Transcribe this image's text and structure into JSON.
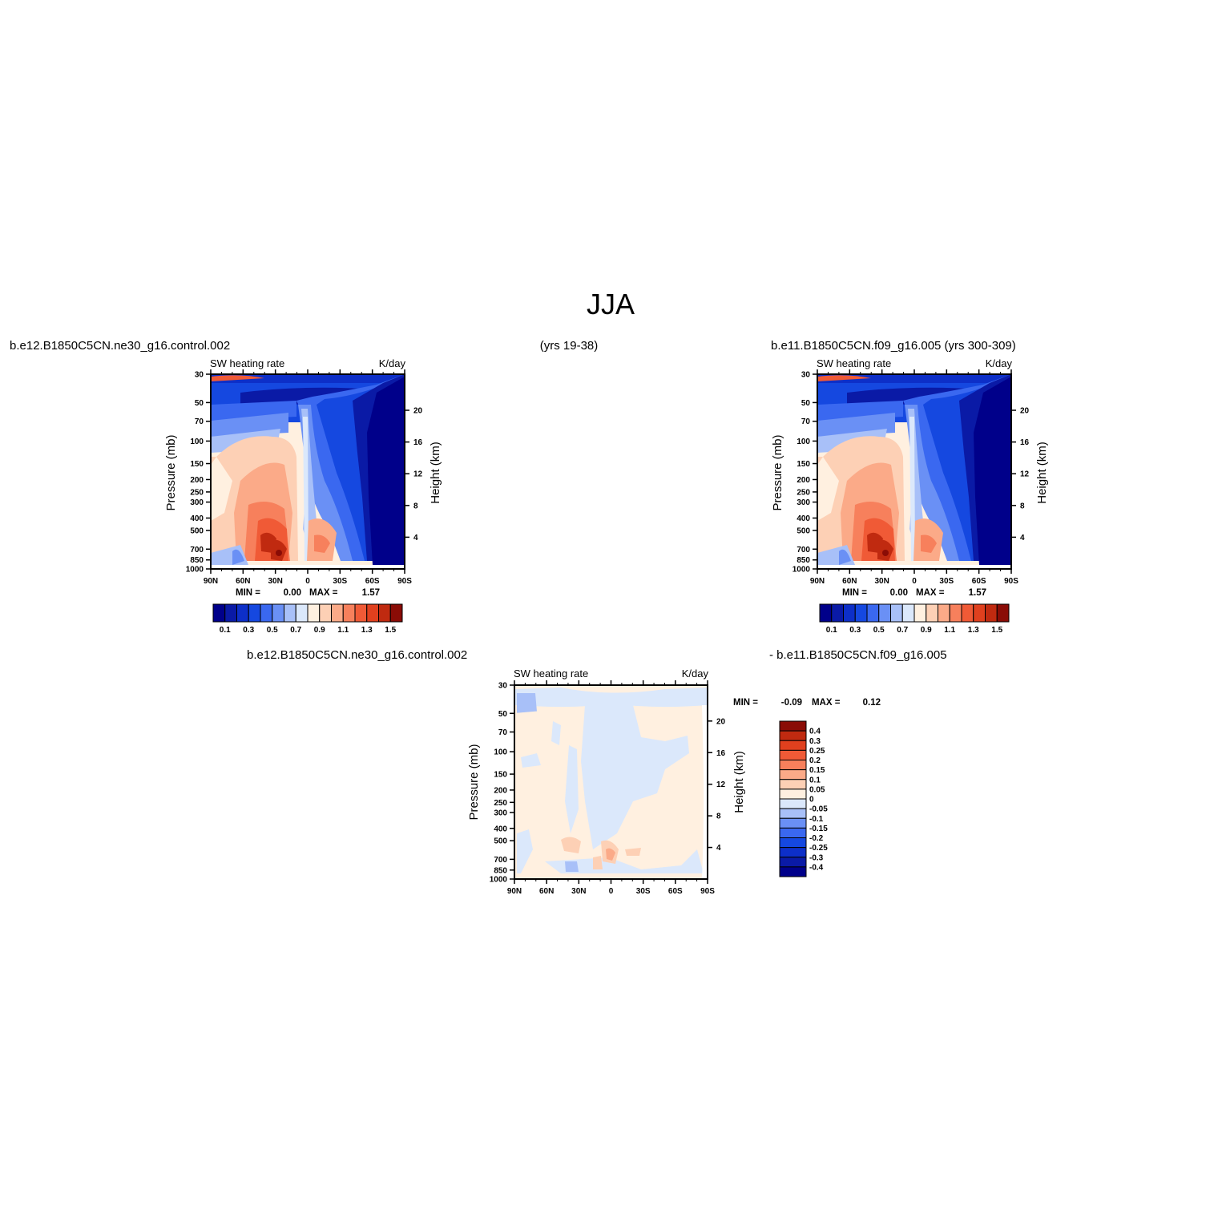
{
  "figure": {
    "title": "JJA",
    "left_case": "b.e12.B1850C5CN.ne30_g16.control.002",
    "years": "(yrs 19-38)",
    "right_case": "b.e11.B1850C5CN.f09_g16.005 (yrs 300-309)",
    "diff_case_a": "b.e12.B1850C5CN.ne30_g16.control.002",
    "diff_case_b": "- b.e11.B1850C5CN.f09_g16.005"
  },
  "colors": {
    "abs_scale": [
      "#00008a",
      "#0a1aa6",
      "#0d2fc8",
      "#1548e0",
      "#3a68f0",
      "#6a90f5",
      "#a8c0f8",
      "#dbe8fb",
      "#fff0e0",
      "#fdd0b5",
      "#fbaa88",
      "#f7805c",
      "#f05a36",
      "#e0401e",
      "#c02a10",
      "#8a0c06"
    ],
    "diff_scale": [
      "#00008a",
      "#0a1aa6",
      "#0d2fc8",
      "#1548e0",
      "#3a68f0",
      "#6a90f5",
      "#a8c0f8",
      "#dbe8fb",
      "#fff0e0",
      "#fdd0b5",
      "#fbaa88",
      "#f7805c",
      "#f05a36",
      "#e0401e",
      "#c02a10",
      "#8a0c06"
    ]
  },
  "chart_data": [
    {
      "type": "heatmap",
      "panel": "top-left",
      "title_left": "SW heating rate",
      "title_right": "K/day",
      "ylabel": "Pressure (mb)",
      "ylabel_right": "Height (km)",
      "x_ticks": [
        "90N",
        "60N",
        "30N",
        "0",
        "30S",
        "60S",
        "90S"
      ],
      "y_ticks": [
        "30",
        "50",
        "70",
        "100",
        "150",
        "200",
        "250",
        "300",
        "400",
        "500",
        "700",
        "850",
        "1000"
      ],
      "y_ticks_right": [
        "20",
        "16",
        "12",
        "8",
        "4"
      ],
      "min_label": "MIN =",
      "min_value": "0.00",
      "max_label": "MAX =",
      "max_value": "1.57",
      "colorbar_labels": [
        "0.1",
        "0.3",
        "0.5",
        "0.7",
        "0.9",
        "1.1",
        "1.3",
        "1.5"
      ],
      "levels": [
        0.1,
        0.2,
        0.3,
        0.4,
        0.5,
        0.6,
        0.7,
        0.8,
        0.9,
        1.0,
        1.1,
        1.2,
        1.3,
        1.4,
        1.5
      ]
    },
    {
      "type": "heatmap",
      "panel": "top-right",
      "title_left": "SW heating rate",
      "title_right": "K/day",
      "ylabel": "Pressure (mb)",
      "ylabel_right": "Height (km)",
      "x_ticks": [
        "90N",
        "60N",
        "30N",
        "0",
        "30S",
        "60S",
        "90S"
      ],
      "y_ticks": [
        "30",
        "50",
        "70",
        "100",
        "150",
        "200",
        "250",
        "300",
        "400",
        "500",
        "700",
        "850",
        "1000"
      ],
      "y_ticks_right": [
        "20",
        "16",
        "12",
        "8",
        "4"
      ],
      "min_label": "MIN =",
      "min_value": "0.00",
      "max_label": "MAX =",
      "max_value": "1.57",
      "colorbar_labels": [
        "0.1",
        "0.3",
        "0.5",
        "0.7",
        "0.9",
        "1.1",
        "1.3",
        "1.5"
      ],
      "levels": [
        0.1,
        0.2,
        0.3,
        0.4,
        0.5,
        0.6,
        0.7,
        0.8,
        0.9,
        1.0,
        1.1,
        1.2,
        1.3,
        1.4,
        1.5
      ]
    },
    {
      "type": "heatmap",
      "panel": "bottom-difference",
      "title_left": "SW heating rate",
      "title_right": "K/day",
      "ylabel": "Pressure (mb)",
      "ylabel_right": "Height (km)",
      "x_ticks": [
        "90N",
        "60N",
        "30N",
        "0",
        "30S",
        "60S",
        "90S"
      ],
      "y_ticks": [
        "30",
        "50",
        "70",
        "100",
        "150",
        "200",
        "250",
        "300",
        "400",
        "500",
        "700",
        "850",
        "1000"
      ],
      "y_ticks_right": [
        "20",
        "16",
        "12",
        "8",
        "4"
      ],
      "min_label": "MIN =",
      "min_value": "-0.09",
      "max_label": "MAX =",
      "max_value": "0.12",
      "colorbar_labels": [
        "0.4",
        "0.3",
        "0.25",
        "0.2",
        "0.15",
        "0.1",
        "0.05",
        "0",
        "-0.05",
        "-0.1",
        "-0.15",
        "-0.2",
        "-0.25",
        "-0.3",
        "-0.4"
      ],
      "levels": [
        -0.4,
        -0.3,
        -0.25,
        -0.2,
        -0.15,
        -0.1,
        -0.05,
        0,
        0.05,
        0.1,
        0.15,
        0.2,
        0.25,
        0.3,
        0.4
      ]
    }
  ]
}
